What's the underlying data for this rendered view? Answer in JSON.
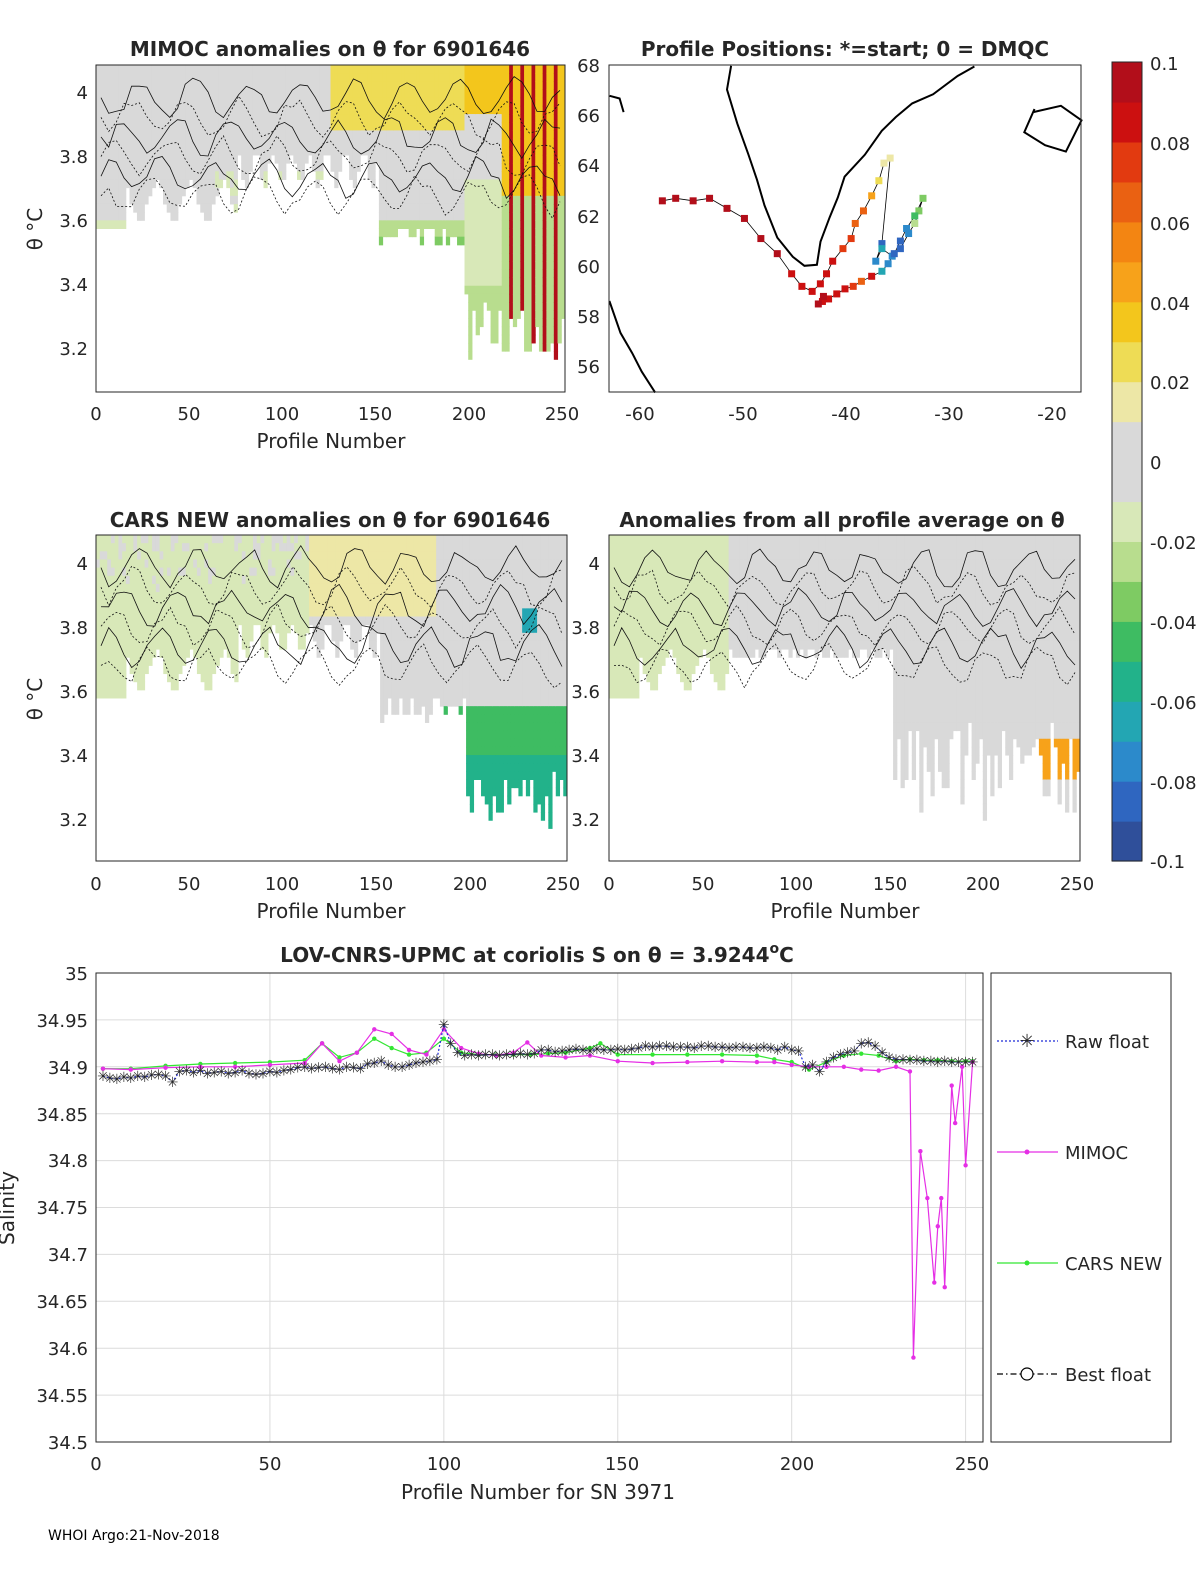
{
  "colors": {
    "colormap": [
      "#2f4f9a",
      "#2f66c0",
      "#2c8acb",
      "#23a6b3",
      "#22b28a",
      "#3ebc62",
      "#7ecb63",
      "#b8dd8e",
      "#d8e8b8",
      "#d9d9d9",
      "#d9d9d9",
      "#ede7a6",
      "#eedc55",
      "#f3c61c",
      "#f7a21a",
      "#f38512",
      "#ea6112",
      "#e23a10",
      "#cc1010",
      "#b20e1a"
    ],
    "raw_float": "#1f2bd6",
    "mimoc": "#e52fe5",
    "cars_new": "#33e633",
    "best_float": "#000000",
    "land": "#000000"
  },
  "footer": "WHOI Argo:21-Nov-2018",
  "panels": {
    "mimoc": {
      "title": "MIMOC anomalies on θ  for 6901646",
      "xlabel": "Profile Number",
      "ylabel": "θ °C",
      "xticks": [
        "0",
        "50",
        "100",
        "150",
        "200",
        "250"
      ],
      "yticks": [
        "4",
        "3.8",
        "3.6",
        "3.4",
        "3.2"
      ]
    },
    "positions": {
      "title": "Profile Positions: *=start; 0 = DMQC",
      "xticks": [
        "-60",
        "-50",
        "-40",
        "-30",
        "-20"
      ],
      "yticks": [
        "68",
        "66",
        "64",
        "62",
        "60",
        "58",
        "56"
      ]
    },
    "cars": {
      "title": "CARS NEW anomalies on θ for 6901646",
      "xlabel": "Profile Number",
      "ylabel": "θ °C",
      "xticks": [
        "0",
        "50",
        "100",
        "150",
        "200",
        "250"
      ],
      "yticks": [
        "4",
        "3.8",
        "3.6",
        "3.4",
        "3.2"
      ]
    },
    "average": {
      "title": "Anomalies from all profile average on θ",
      "xlabel": "Profile Number",
      "xticks": [
        "0",
        "50",
        "100",
        "150",
        "200",
        "250"
      ],
      "yticks": [
        "4",
        "3.8",
        "3.6",
        "3.4",
        "3.2"
      ]
    },
    "colorbar": {
      "ticks": [
        "0.1",
        "0.08",
        "0.06",
        "0.04",
        "0.02",
        "0",
        "-0.02",
        "-0.04",
        "-0.06",
        "-0.08",
        "-0.1"
      ]
    }
  },
  "chart_data": [
    {
      "id": "mimoc",
      "type": "heatmap",
      "title": "MIMOC anomalies on θ  for 6901646",
      "xlabel": "Profile Number",
      "ylabel": "θ °C",
      "xlim": [
        0,
        252
      ],
      "ylim": [
        3.06,
        4.08
      ],
      "clim": [
        -0.1,
        0.1
      ]
    },
    {
      "id": "positions",
      "type": "scatter",
      "title": "Profile Positions: *=start; 0 = DMQC",
      "xlim": [
        -63,
        -17
      ],
      "ylim": [
        55,
        68
      ],
      "track_lon": [
        -57.8,
        -56.5,
        -54.8,
        -53.2,
        -51.5,
        -49.8,
        -48.2,
        -46.6,
        -45.2,
        -44.2,
        -43.2,
        -42.4,
        -41.8,
        -41.2,
        -40.2,
        -39.4,
        -39.0,
        -38.2,
        -37.4,
        -36.7,
        -36.2,
        -35.6,
        -36.4,
        -37.0,
        -36.4,
        -35.4,
        -34.6,
        -33.8,
        -33.2,
        -32.8,
        -32.4,
        -33.2,
        -34.0,
        -34.6,
        -35.2,
        -35.8,
        -36.4,
        -37.4,
        -38.4,
        -39.2,
        -40.0,
        -40.8,
        -41.6,
        -42.2,
        -42.6,
        -42.1
      ],
      "track_lat": [
        62.6,
        62.7,
        62.6,
        62.7,
        62.3,
        61.9,
        61.1,
        60.5,
        59.7,
        59.2,
        59.0,
        59.3,
        59.7,
        60.2,
        60.7,
        61.1,
        61.7,
        62.2,
        62.8,
        63.4,
        64.1,
        64.3,
        60.9,
        60.2,
        60.7,
        60.4,
        60.7,
        61.3,
        61.7,
        62.2,
        62.7,
        62.0,
        61.5,
        61.0,
        60.5,
        60.1,
        59.8,
        59.6,
        59.4,
        59.2,
        59.1,
        58.9,
        58.7,
        58.6,
        58.5,
        58.8
      ],
      "color_index": [
        0.98,
        0.98,
        0.97,
        0.97,
        0.96,
        0.96,
        0.95,
        0.95,
        0.94,
        0.94,
        0.93,
        0.92,
        0.91,
        0.9,
        0.89,
        0.88,
        0.85,
        0.8,
        0.7,
        0.62,
        0.58,
        0.55,
        0.1,
        0.12,
        0.15,
        0.12,
        0.1,
        0.12,
        0.35,
        0.3,
        0.32,
        0.25,
        0.12,
        0.1,
        0.08,
        0.12,
        0.15,
        0.9,
        0.85,
        0.88,
        0.92,
        0.93,
        0.9,
        0.94,
        0.95,
        0.96
      ]
    },
    {
      "id": "cars",
      "type": "heatmap",
      "title": "CARS NEW anomalies on θ for 6901646",
      "xlabel": "Profile Number",
      "ylabel": "θ °C",
      "xlim": [
        0,
        252
      ],
      "ylim": [
        3.06,
        4.08
      ],
      "clim": [
        -0.1,
        0.1
      ]
    },
    {
      "id": "average",
      "type": "heatmap",
      "title": "Anomalies from all profile average on θ",
      "xlabel": "Profile Number",
      "xlim": [
        0,
        252
      ],
      "ylim": [
        3.06,
        4.08
      ],
      "clim": [
        -0.1,
        0.1
      ]
    },
    {
      "id": "salinity",
      "type": "line",
      "title_main": "LOV-CNRS-UPMC at coriolis S on θ = 3.9244",
      "title_sup": "o",
      "title_end": "C",
      "xlabel": "Profile Number for SN 3971",
      "ylabel": "Salinity",
      "xlim": [
        0,
        255
      ],
      "ylim": [
        34.5,
        35.0
      ],
      "xticks": [
        "0",
        "50",
        "100",
        "150",
        "200",
        "250"
      ],
      "yticks": [
        "35",
        "34.95",
        "34.9",
        "34.85",
        "34.8",
        "34.75",
        "34.7",
        "34.65",
        "34.6",
        "34.55",
        "34.5"
      ],
      "legend": [
        "Raw float",
        "MIMOC",
        "CARS NEW",
        "Best float"
      ],
      "raw_float_x": [
        2,
        4,
        6,
        8,
        10,
        12,
        14,
        16,
        18,
        20,
        22,
        24,
        26,
        28,
        30,
        32,
        34,
        36,
        38,
        40,
        42,
        44,
        46,
        48,
        50,
        52,
        54,
        56,
        58,
        60,
        62,
        64,
        66,
        68,
        70,
        72,
        74,
        76,
        78,
        80,
        82,
        84,
        86,
        88,
        90,
        92,
        94,
        96,
        98,
        100,
        102,
        104,
        106,
        108,
        110,
        112,
        114,
        116,
        118,
        120,
        122,
        124,
        126,
        128,
        130,
        132,
        134,
        136,
        138,
        140,
        142,
        144,
        146,
        148,
        150,
        152,
        154,
        156,
        158,
        160,
        162,
        164,
        166,
        168,
        170,
        172,
        174,
        176,
        178,
        180,
        182,
        184,
        186,
        188,
        190,
        192,
        194,
        196,
        198,
        200,
        202,
        204,
        206,
        208,
        210,
        212,
        214,
        216,
        218,
        220,
        222,
        224,
        226,
        228,
        230,
        232,
        234,
        236,
        238,
        240,
        242,
        244,
        246,
        248,
        250,
        252
      ],
      "raw_float_y": [
        34.89,
        34.888,
        34.887,
        34.889,
        34.888,
        34.89,
        34.889,
        34.891,
        34.892,
        34.89,
        34.884,
        34.895,
        34.896,
        34.894,
        34.896,
        34.893,
        34.894,
        34.895,
        34.893,
        34.894,
        34.896,
        34.893,
        34.892,
        34.893,
        34.895,
        34.894,
        34.896,
        34.897,
        34.899,
        34.9,
        34.898,
        34.899,
        34.9,
        34.898,
        34.897,
        34.9,
        34.899,
        34.898,
        34.903,
        34.904,
        34.906,
        34.902,
        34.9,
        34.9,
        34.902,
        34.904,
        34.905,
        34.906,
        34.908,
        34.945,
        34.925,
        34.915,
        34.912,
        34.913,
        34.912,
        34.913,
        34.913,
        34.912,
        34.913,
        34.913,
        34.914,
        34.913,
        34.914,
        34.918,
        34.918,
        34.916,
        34.917,
        34.918,
        34.919,
        34.918,
        34.917,
        34.919,
        34.918,
        34.918,
        34.919,
        34.918,
        34.919,
        34.92,
        34.922,
        34.921,
        34.922,
        34.922,
        34.921,
        34.921,
        34.921,
        34.92,
        34.922,
        34.922,
        34.921,
        34.921,
        34.92,
        34.921,
        34.921,
        34.92,
        34.92,
        34.921,
        34.92,
        34.918,
        34.921,
        34.918,
        34.917,
        34.9,
        34.902,
        34.895,
        34.905,
        34.91,
        34.913,
        34.915,
        34.917,
        34.925,
        34.926,
        34.922,
        34.915,
        34.91,
        34.908,
        34.908,
        34.907,
        34.907,
        34.906,
        34.906,
        34.905,
        34.906,
        34.905,
        34.905,
        34.905,
        34.905
      ],
      "mimoc_x": [
        2,
        10,
        20,
        30,
        40,
        50,
        60,
        65,
        70,
        75,
        80,
        85,
        90,
        95,
        100,
        105,
        110,
        115,
        120,
        124,
        128,
        135,
        142,
        150,
        160,
        170,
        180,
        190,
        195,
        200,
        205,
        210,
        215,
        220,
        225,
        230,
        234,
        235,
        237,
        239,
        241,
        242,
        243,
        244,
        246,
        247,
        249,
        250,
        252
      ],
      "mimoc_y": [
        34.898,
        34.897,
        34.899,
        34.9,
        34.9,
        34.902,
        34.904,
        34.925,
        34.906,
        34.915,
        34.94,
        34.935,
        34.918,
        34.913,
        34.94,
        34.92,
        34.914,
        34.912,
        34.915,
        34.926,
        34.912,
        34.91,
        34.912,
        34.906,
        34.904,
        34.905,
        34.906,
        34.905,
        34.905,
        34.902,
        34.9,
        34.9,
        34.9,
        34.897,
        34.896,
        34.9,
        34.895,
        34.59,
        34.81,
        34.76,
        34.67,
        34.73,
        34.76,
        34.665,
        34.88,
        34.84,
        34.9,
        34.795,
        34.905
      ],
      "cars_x": [
        2,
        10,
        20,
        30,
        40,
        50,
        60,
        65,
        70,
        75,
        80,
        85,
        90,
        95,
        100,
        105,
        110,
        115,
        120,
        125,
        130,
        135,
        142,
        145,
        150,
        160,
        170,
        180,
        190,
        195,
        200,
        205,
        210,
        215,
        220,
        225,
        230,
        234,
        238,
        242,
        246,
        250,
        252
      ],
      "cars_y": [
        34.898,
        34.898,
        34.901,
        34.903,
        34.904,
        34.905,
        34.907,
        34.925,
        34.91,
        34.915,
        34.93,
        34.92,
        34.913,
        34.915,
        34.93,
        34.915,
        34.913,
        34.913,
        34.913,
        34.913,
        34.914,
        34.915,
        34.92,
        34.925,
        34.913,
        34.913,
        34.913,
        34.913,
        34.912,
        34.908,
        34.905,
        34.897,
        34.905,
        34.912,
        34.914,
        34.912,
        34.906,
        34.908,
        34.907,
        34.907,
        34.906,
        34.906,
        34.906
      ]
    }
  ]
}
